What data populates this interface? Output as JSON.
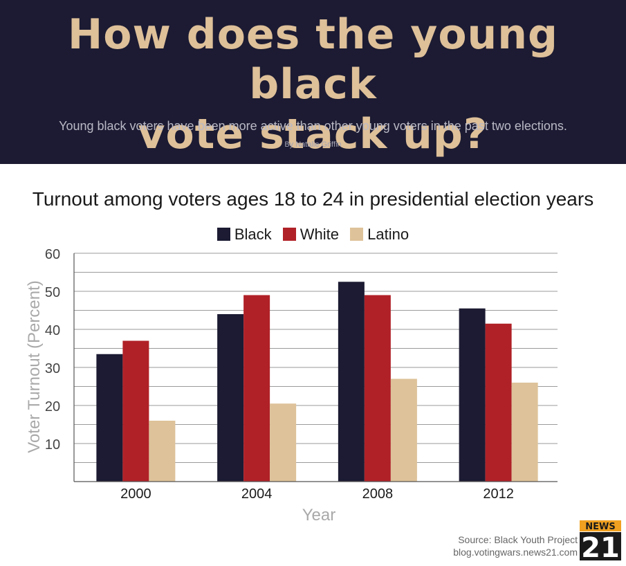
{
  "header": {
    "headline_line1": "How does the young black",
    "headline_line2": "vote stack up?",
    "subtitle": "Young black voters have been more active than other young voters in the past two elections.",
    "byline": "By Natalie Griffin",
    "background_color": "#1c1b33",
    "headline_color": "#dec099"
  },
  "chart_data": {
    "type": "bar",
    "title": "Turnout among voters ages 18 to 24 in presidential election years",
    "xlabel": "Year",
    "ylabel": "Voter Turnout (Percent)",
    "categories": [
      "2000",
      "2004",
      "2008",
      "2012"
    ],
    "series": [
      {
        "name": "Black",
        "color": "#1c1b33",
        "values": [
          33.5,
          44,
          52.5,
          45.5
        ]
      },
      {
        "name": "White",
        "color": "#b02127",
        "values": [
          37,
          49,
          49,
          41.5
        ]
      },
      {
        "name": "Latino",
        "color": "#dec299",
        "values": [
          16,
          20.5,
          27,
          26
        ]
      }
    ],
    "ylim": [
      0,
      60
    ],
    "yticks": [
      10,
      20,
      30,
      40,
      50,
      60
    ],
    "grid": true,
    "legend": "top-center"
  },
  "footer": {
    "source_line1": "Source: Black Youth Project",
    "source_line2": "blog.votingwars.news21.com",
    "logo_word": "NEWS",
    "logo_number": "21"
  }
}
